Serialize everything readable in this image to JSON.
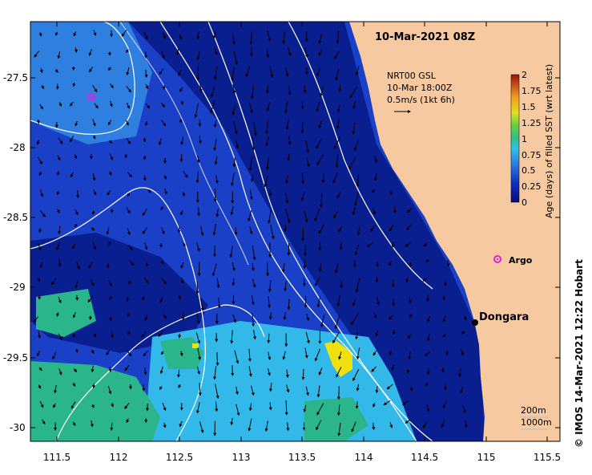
{
  "map": {
    "title": "10-Mar-2021 08Z",
    "credit": "©  IMOS 14-Mar-2021 12:22 Hobart",
    "town": "Dongara",
    "argo_label": "Argo",
    "legend": {
      "lines": [
        "NRT00 GSL",
        "10-Mar 18:00Z",
        "0.5m/s (1kt 6h)"
      ]
    },
    "contour_legend": [
      "200m",
      "1000m"
    ],
    "colorbar": {
      "label": "Age (days) of filled SST (wrt latest)",
      "ticks": [
        "2",
        "1.75",
        "1.5",
        "1.25",
        "1",
        "0.75",
        "0.5",
        "0.25",
        "0"
      ]
    },
    "x_ticks": [
      "111.5",
      "112",
      "112.5",
      "113",
      "113.5",
      "114",
      "114.5",
      "115",
      "115.5"
    ],
    "y_ticks": [
      "-27.5",
      "-28",
      "-28.5",
      "-29",
      "-29.5",
      "-30"
    ],
    "colors": {
      "land": "#f7c9a0",
      "deep_blue": "#0a1f8f",
      "mid_blue": "#1a40c8",
      "light_blue": "#2f8fe0",
      "cyan": "#33c3e8",
      "green": "#2bb58a",
      "yellow": "#f0e010",
      "argo": "#e020e0"
    }
  }
}
